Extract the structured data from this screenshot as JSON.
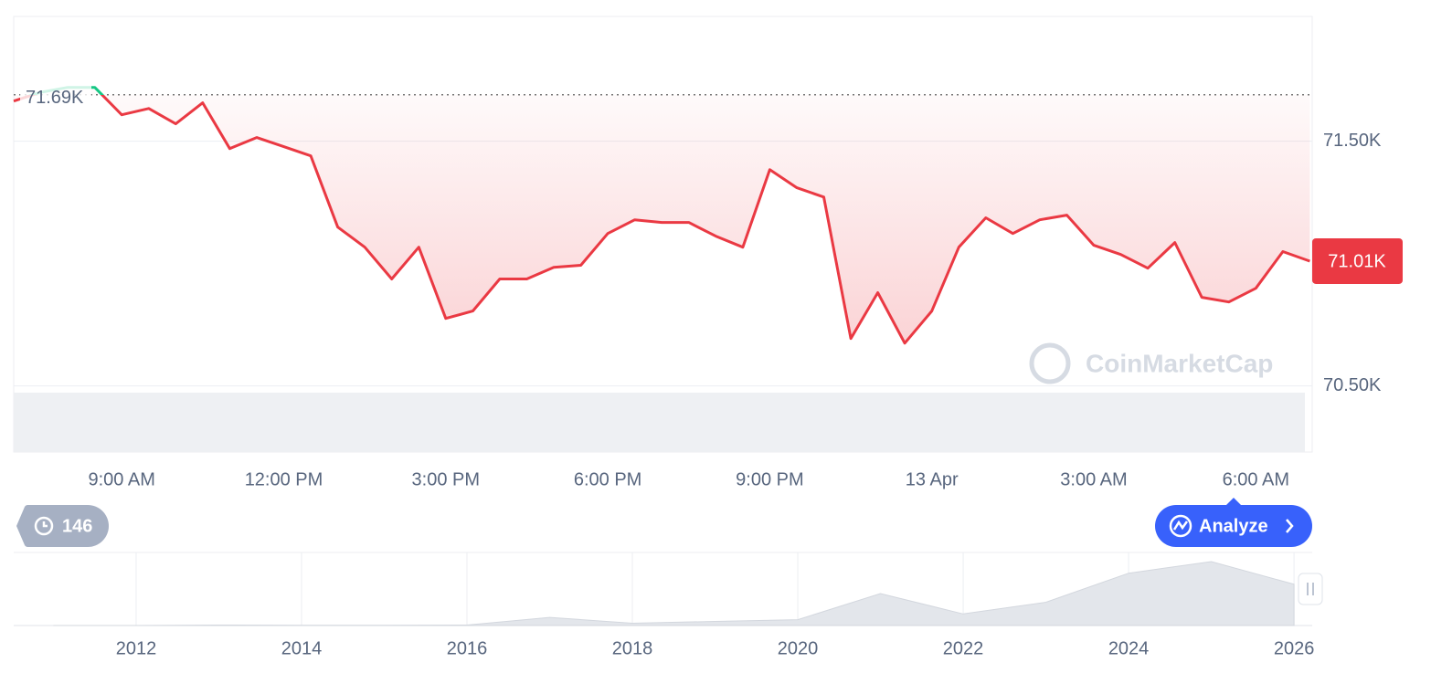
{
  "chart_data": [
    {
      "type": "line",
      "categories": [
        null,
        null,
        null,
        null,
        "9:00 AM",
        null,
        null,
        null,
        null,
        null,
        "12:00 PM",
        null,
        null,
        null,
        null,
        null,
        "3:00 PM",
        null,
        null,
        null,
        null,
        null,
        "6:00 PM",
        null,
        null,
        null,
        null,
        null,
        "9:00 PM",
        null,
        null,
        null,
        null,
        null,
        "13 Apr",
        null,
        null,
        null,
        null,
        null,
        "3:00 AM",
        null,
        null,
        null,
        null,
        null,
        "6:00 AM",
        null,
        null
      ],
      "values": [
        71664,
        71700,
        71720,
        71720,
        71608,
        71634,
        71571,
        71657,
        71470,
        71515,
        71478,
        71440,
        71149,
        71067,
        70937,
        71067,
        70776,
        70806,
        70937,
        70937,
        70985,
        70993,
        71123,
        71179,
        71168,
        71168,
        71112,
        71067,
        71384,
        71310,
        71272,
        70694,
        70881,
        70675,
        70806,
        71067,
        71187,
        71123,
        71179,
        71198,
        71075,
        71037,
        70981,
        71086,
        70862,
        70843,
        70899,
        71049,
        71010
      ],
      "ylim": [
        70230,
        72010
      ],
      "yticks": [
        {
          "value": 70500,
          "label": "70.50K"
        },
        {
          "value": 71500,
          "label": "71.50K"
        }
      ],
      "reference_line": {
        "value": 71690,
        "label": "71.69K"
      },
      "current_price": {
        "value": 71010,
        "label": "71.01K"
      },
      "color": "#ea3943",
      "color_up": "#16c784",
      "grid": true
    },
    {
      "type": "area",
      "x": [
        2011,
        2012,
        2013,
        2014,
        2015,
        2016,
        2017,
        2018,
        2019,
        2020,
        2021,
        2022,
        2023,
        2024,
        2025,
        2026
      ],
      "values": [
        0,
        13,
        800,
        400,
        300,
        800,
        14000,
        4000,
        7000,
        10000,
        55000,
        20000,
        40000,
        90000,
        110000,
        71000
      ],
      "xlim": [
        2010.52,
        2026.22
      ],
      "ylim": [
        0,
        125700
      ],
      "xticks": [
        2012,
        2014,
        2016,
        2018,
        2020,
        2022,
        2024,
        2026
      ],
      "color": "#e3e6eb",
      "grid": true
    }
  ],
  "controls": {
    "history_count": 146,
    "analyze": "Analyze"
  },
  "watermark": "CoinMarketCap"
}
